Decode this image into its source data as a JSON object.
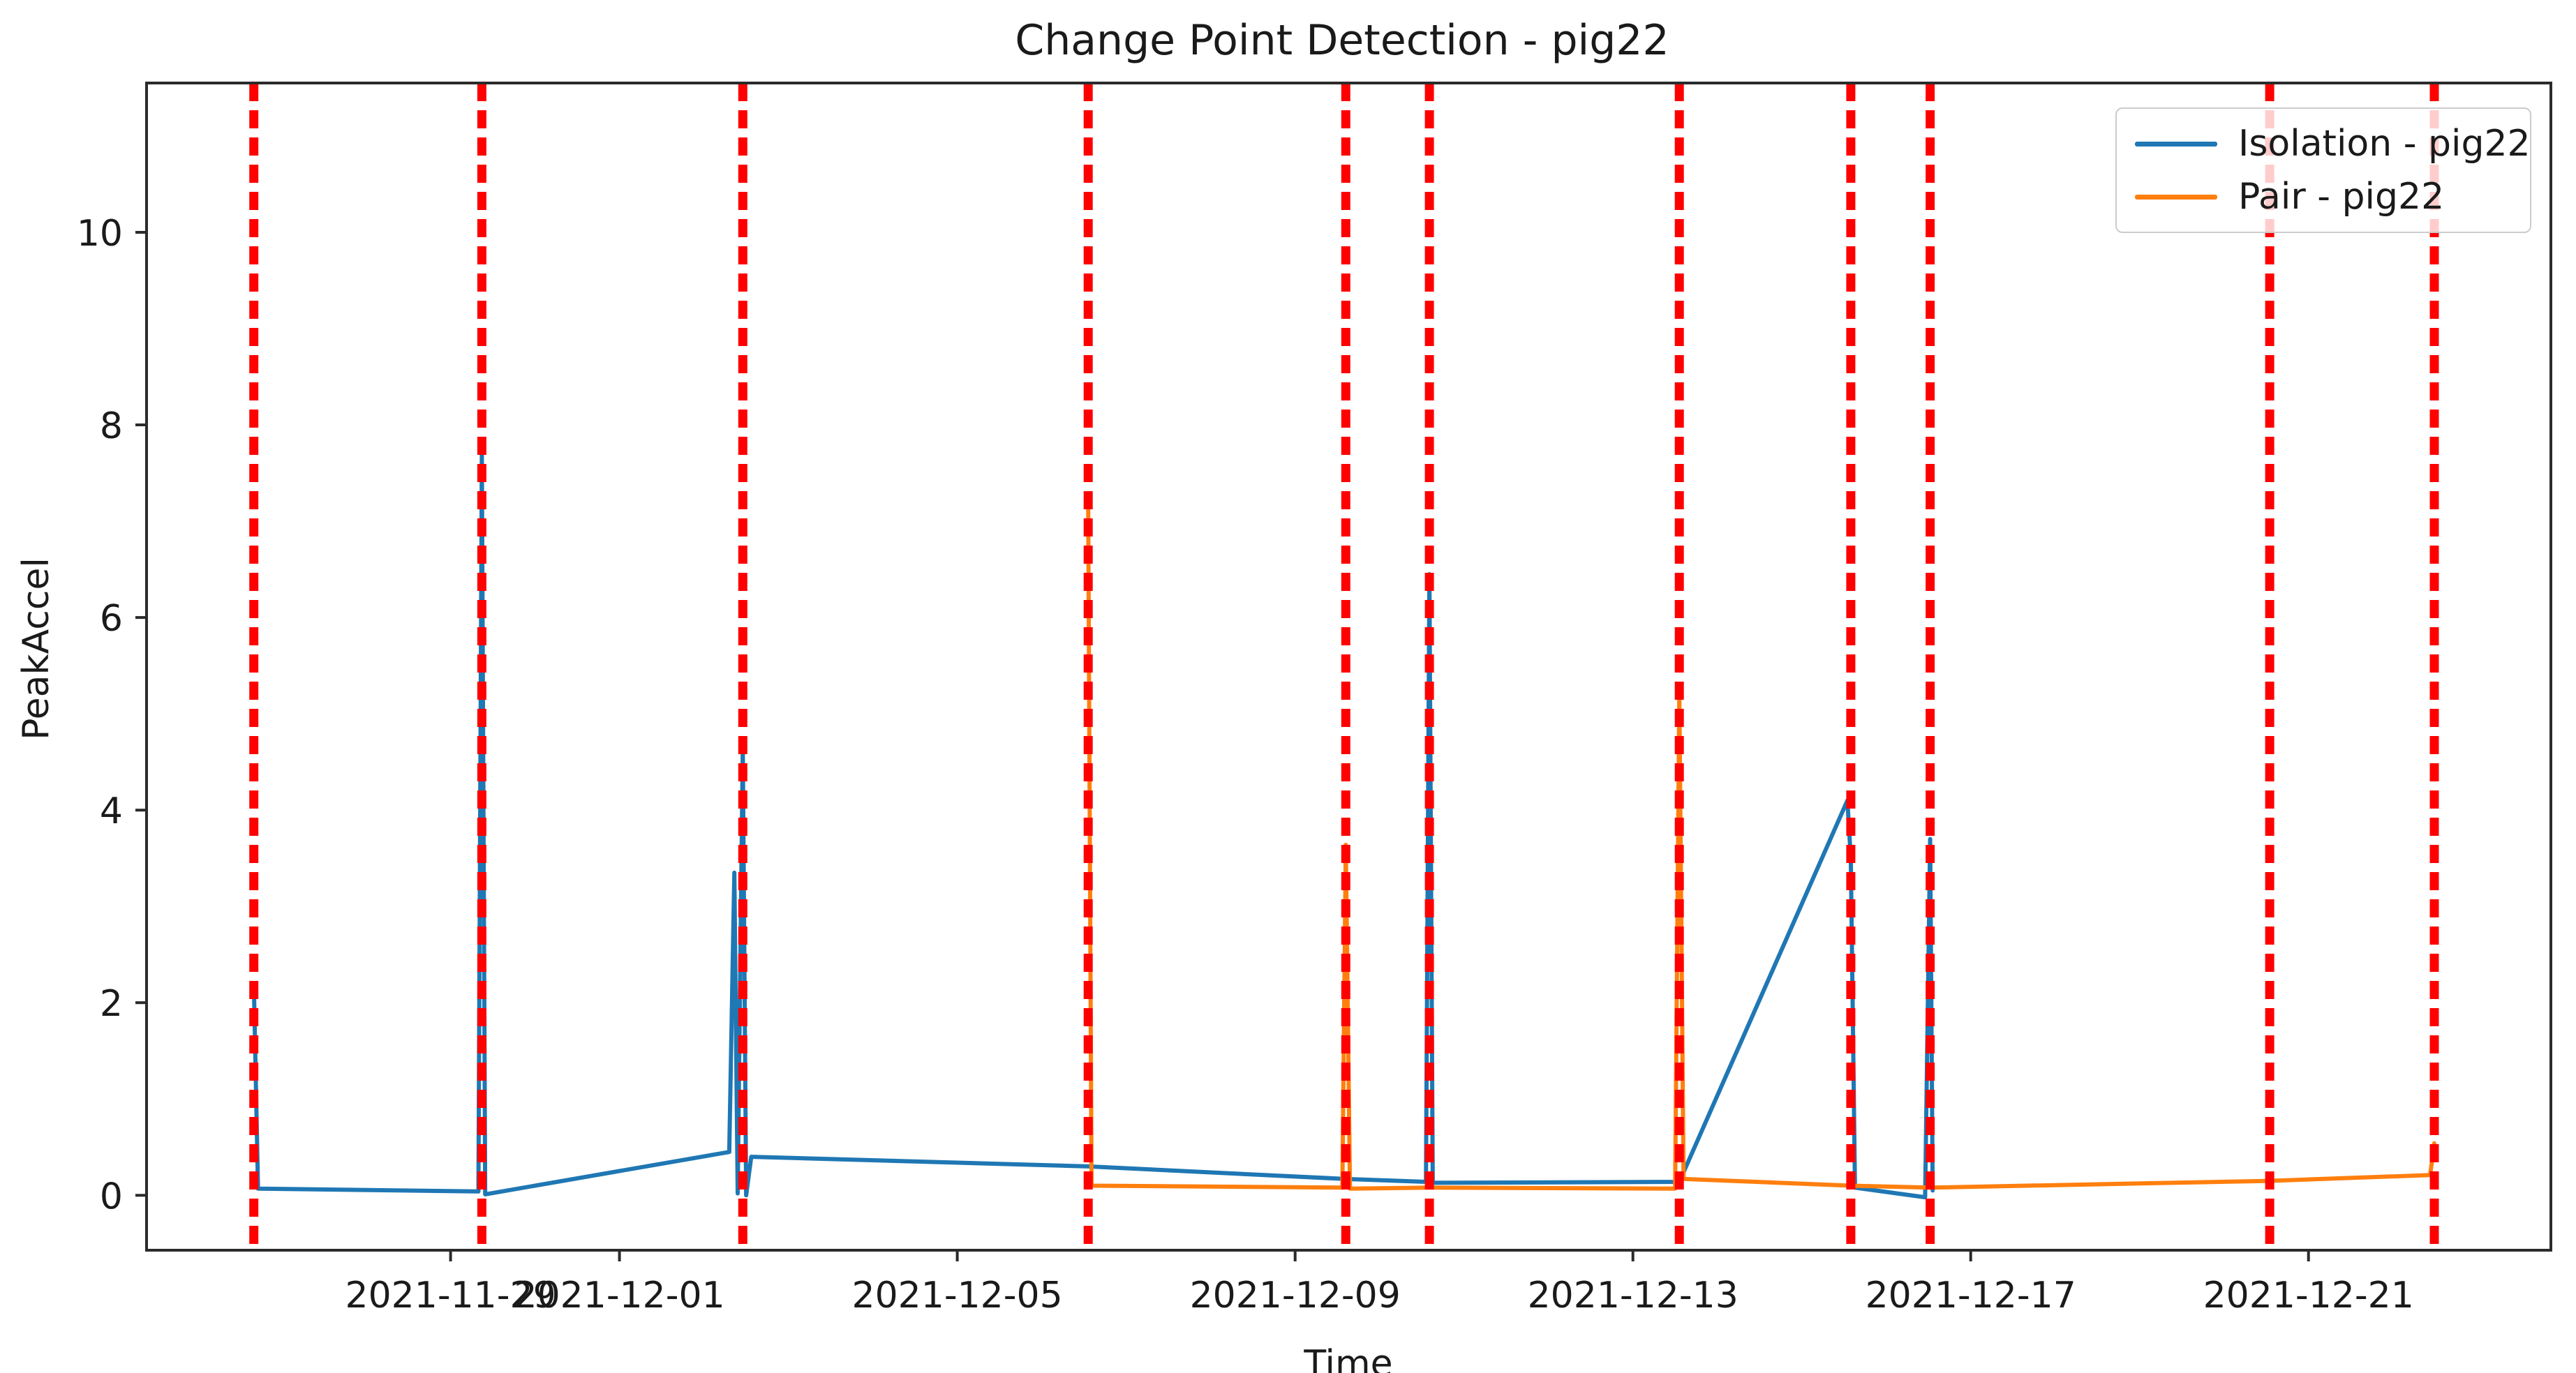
{
  "figure": {
    "title": "Change Point Detection - pig22",
    "xlabel": "Time",
    "ylabel": "PeakAccel"
  },
  "legend": {
    "position": "upper-right",
    "items": [
      {
        "label": "Isolation - pig22",
        "color": "#1f77b4"
      },
      {
        "label": "Pair - pig22",
        "color": "#ff7f0e"
      }
    ]
  },
  "chart_data": {
    "type": "line",
    "title": "Change Point Detection - pig22",
    "xlabel": "Time",
    "ylabel": "PeakAccel",
    "x_unit": "days since 2021-11-29 00:00",
    "xlim": [
      -3.6,
      24.87
    ],
    "ylim": [
      -0.57,
      11.55
    ],
    "grid": false,
    "legend_position": "upper-right",
    "axis_color": "#2b2b2b",
    "x_ticks": [
      {
        "day": 0,
        "label": "2021-11-29"
      },
      {
        "day": 2,
        "label": "2021-12-01"
      },
      {
        "day": 6,
        "label": "2021-12-05"
      },
      {
        "day": 10,
        "label": "2021-12-09"
      },
      {
        "day": 14,
        "label": "2021-12-13"
      },
      {
        "day": 18,
        "label": "2021-12-17"
      },
      {
        "day": 22,
        "label": "2021-12-21"
      }
    ],
    "y_ticks": [
      "0",
      "2",
      "4",
      "6",
      "8",
      "10"
    ],
    "y_tick_values": [
      0,
      2,
      4,
      6,
      8,
      10
    ],
    "change_points": {
      "color": "#ff0000",
      "style": "dashed",
      "lines": [
        {
          "day": -2.33,
          "date": "2021-11-26 16:00"
        },
        {
          "day": 0.37,
          "date": "2021-11-29 09:00"
        },
        {
          "day": 3.46,
          "date": "2021-12-02 11:00"
        },
        {
          "day": 7.55,
          "date": "2021-12-06 13:00"
        },
        {
          "day": 10.6,
          "date": "2021-12-09 14:00"
        },
        {
          "day": 11.59,
          "date": "2021-12-10 14:00"
        },
        {
          "day": 14.55,
          "date": "2021-12-13 13:00"
        },
        {
          "day": 16.58,
          "date": "2021-12-15 14:00"
        },
        {
          "day": 17.52,
          "date": "2021-12-16 12:00"
        },
        {
          "day": 21.54,
          "date": "2021-12-20 13:00"
        },
        {
          "day": 23.49,
          "date": "2021-12-22 12:00"
        }
      ]
    },
    "series": [
      {
        "name": "Isolation - pig22",
        "color": "#1f77b4",
        "points": [
          [
            -2.33,
            2.2
          ],
          [
            -2.28,
            0.07
          ],
          [
            0.33,
            0.04
          ],
          [
            0.37,
            7.7
          ],
          [
            0.41,
            0.01
          ],
          [
            3.3,
            0.45
          ],
          [
            3.36,
            3.35
          ],
          [
            3.4,
            0.02
          ],
          [
            3.46,
            4.65
          ],
          [
            3.5,
            0.0
          ],
          [
            3.56,
            0.4
          ],
          [
            7.55,
            0.3
          ],
          [
            10.6,
            0.17
          ],
          [
            11.55,
            0.14
          ],
          [
            11.59,
            6.45
          ],
          [
            11.63,
            0.13
          ],
          [
            14.55,
            0.14
          ],
          [
            16.54,
            4.1
          ],
          [
            16.58,
            3.5
          ],
          [
            16.63,
            0.08
          ],
          [
            17.46,
            -0.02
          ],
          [
            17.52,
            3.7
          ],
          [
            17.55,
            0.05
          ]
        ]
      },
      {
        "name": "Pair - pig22",
        "color": "#ff7f0e",
        "points": [
          [
            7.55,
            7.2
          ],
          [
            7.59,
            0.1
          ],
          [
            10.56,
            0.08
          ],
          [
            10.6,
            3.64
          ],
          [
            10.65,
            0.07
          ],
          [
            11.59,
            0.08
          ],
          [
            14.5,
            0.07
          ],
          [
            14.55,
            5.2
          ],
          [
            14.6,
            0.17
          ],
          [
            16.58,
            0.1
          ],
          [
            17.52,
            0.08
          ],
          [
            21.54,
            0.15
          ],
          [
            23.44,
            0.21
          ],
          [
            23.49,
            0.54
          ]
        ]
      }
    ]
  }
}
